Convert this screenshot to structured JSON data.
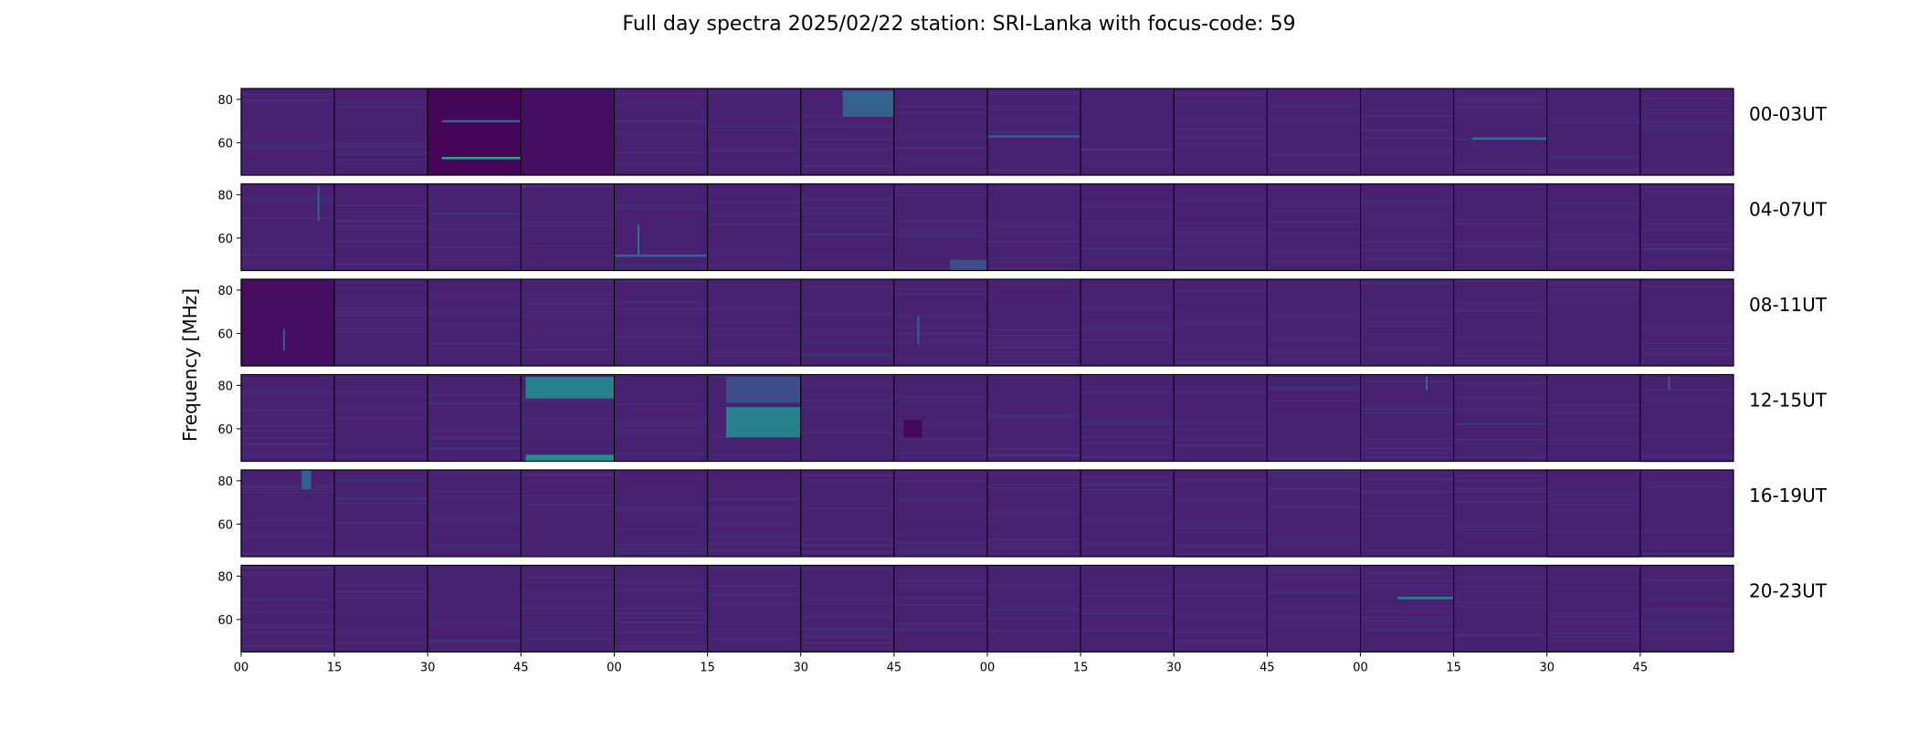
{
  "chart_data": {
    "type": "heatmap",
    "title": "Full day spectra 2025/02/22 station: SRI-Lanka with focus-code: 59",
    "ylabel": "Frequency [MHz]",
    "xlabel": "",
    "ylim": [
      45,
      85
    ],
    "y_ticks": [
      60,
      80
    ],
    "x_tick_labels": [
      "00",
      "15",
      "30",
      "45",
      "00",
      "15",
      "30",
      "45",
      "00",
      "15",
      "30",
      "45",
      "00",
      "15",
      "30",
      "45"
    ],
    "panels_per_row": 16,
    "minutes_per_panel": 15,
    "colormap": "viridis",
    "background_level": 0.12,
    "rows": [
      {
        "label": "00-03UT",
        "features": [
          {
            "panel": 2,
            "kind": "dark_block",
            "intensity": 0.02
          },
          {
            "panel": 2,
            "kind": "hline",
            "freq": 70,
            "x0": 0.15,
            "x1": 1.0,
            "intensity": 0.4
          },
          {
            "panel": 2,
            "kind": "hline",
            "freq": 53,
            "x0": 0.15,
            "x1": 1.0,
            "intensity": 0.75
          },
          {
            "panel": 3,
            "kind": "dark_block",
            "intensity": 0.05
          },
          {
            "panel": 6,
            "kind": "block",
            "f0": 72,
            "f1": 84,
            "x0": 0.45,
            "x1": 1.0,
            "intensity": 0.4
          },
          {
            "panel": 8,
            "kind": "hline",
            "freq": 63,
            "x0": 0.0,
            "x1": 1.0,
            "intensity": 0.35
          },
          {
            "panel": 13,
            "kind": "hline",
            "freq": 62,
            "x0": 0.2,
            "x1": 1.0,
            "intensity": 0.5
          }
        ]
      },
      {
        "label": "04-07UT",
        "features": [
          {
            "panel": 0,
            "kind": "vline",
            "x": 0.82,
            "f0": 68,
            "f1": 84,
            "intensity": 0.4
          },
          {
            "panel": 4,
            "kind": "vline",
            "x": 0.25,
            "f0": 52,
            "f1": 66,
            "intensity": 0.5
          },
          {
            "panel": 4,
            "kind": "hline",
            "freq": 52,
            "x0": 0.0,
            "x1": 1.0,
            "intensity": 0.4
          },
          {
            "panel": 7,
            "kind": "block",
            "f0": 45,
            "f1": 50,
            "x0": 0.6,
            "x1": 1.0,
            "intensity": 0.3
          }
        ]
      },
      {
        "label": "08-11UT",
        "features": [
          {
            "panel": 0,
            "kind": "dark_block",
            "intensity": 0.05
          },
          {
            "panel": 0,
            "kind": "vline",
            "x": 0.45,
            "f0": 52,
            "f1": 62,
            "intensity": 0.35
          },
          {
            "panel": 7,
            "kind": "vline",
            "x": 0.25,
            "f0": 55,
            "f1": 68,
            "intensity": 0.4
          }
        ]
      },
      {
        "label": "12-15UT",
        "features": [
          {
            "panel": 3,
            "kind": "block",
            "f0": 74,
            "f1": 84,
            "x0": 0.05,
            "x1": 1.0,
            "intensity": 0.55
          },
          {
            "panel": 3,
            "kind": "block",
            "f0": 45,
            "f1": 48,
            "x0": 0.05,
            "x1": 1.0,
            "intensity": 0.6
          },
          {
            "panel": 5,
            "kind": "block",
            "f0": 56,
            "f1": 70,
            "x0": 0.2,
            "x1": 1.0,
            "intensity": 0.55
          },
          {
            "panel": 5,
            "kind": "block",
            "f0": 72,
            "f1": 84,
            "x0": 0.2,
            "x1": 1.0,
            "intensity": 0.3
          },
          {
            "panel": 7,
            "kind": "block",
            "f0": 56,
            "f1": 64,
            "x0": 0.1,
            "x1": 0.3,
            "intensity": 0.03
          },
          {
            "panel": 12,
            "kind": "vline",
            "x": 0.7,
            "f0": 78,
            "f1": 84,
            "intensity": 0.45
          },
          {
            "panel": 15,
            "kind": "vline",
            "x": 0.3,
            "f0": 78,
            "f1": 84,
            "intensity": 0.4
          }
        ]
      },
      {
        "label": "16-19UT",
        "features": [
          {
            "panel": 0,
            "kind": "block",
            "f0": 76,
            "f1": 85,
            "x0": 0.65,
            "x1": 0.75,
            "intensity": 0.4
          }
        ]
      },
      {
        "label": "20-23UT",
        "features": [
          {
            "panel": 12,
            "kind": "hline",
            "freq": 70,
            "x0": 0.4,
            "x1": 1.0,
            "intensity": 0.6
          }
        ]
      }
    ]
  }
}
